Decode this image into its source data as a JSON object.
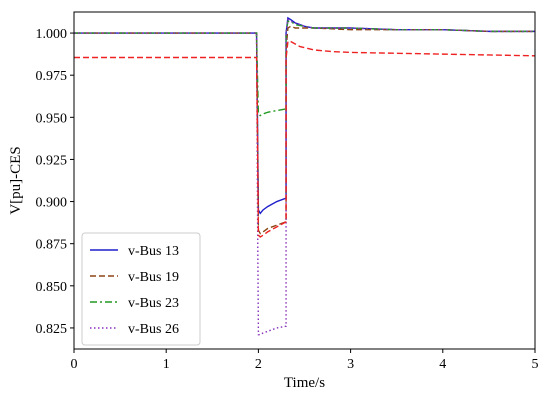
{
  "chart_data": {
    "type": "line",
    "title": "",
    "xlabel": "Time/s",
    "ylabel": "V[pu]-CES",
    "xlim": [
      0,
      5
    ],
    "ylim": [
      0.8125,
      1.0125
    ],
    "x_ticks": [
      0,
      1,
      2,
      3,
      4,
      5
    ],
    "x_tick_labels": [
      "0",
      "1",
      "2",
      "3",
      "4",
      "5"
    ],
    "y_ticks": [
      0.825,
      0.85,
      0.875,
      0.9,
      0.925,
      0.95,
      0.975,
      1.0
    ],
    "y_tick_labels": [
      "0.825",
      "0.850",
      "0.875",
      "0.900",
      "0.925",
      "0.950",
      "0.975",
      "1.000"
    ],
    "grid": false,
    "legend_position": "lower-left",
    "series": [
      {
        "name": "v-Bus 13",
        "color": "#1f1fcc",
        "dash": "solid",
        "x": [
          0,
          1.98,
          1.99,
          2.0,
          2.02,
          2.05,
          2.1,
          2.2,
          2.3,
          2.3,
          2.32,
          2.35,
          2.4,
          2.5,
          2.6,
          3.0,
          3.5,
          4.0,
          4.5,
          5.0
        ],
        "y": [
          1.0,
          1.0,
          0.95,
          0.895,
          0.893,
          0.895,
          0.897,
          0.9,
          0.902,
          1.0,
          1.009,
          1.008,
          1.006,
          1.004,
          1.003,
          1.003,
          1.002,
          1.002,
          1.001,
          1.001
        ]
      },
      {
        "name": "v-Bus 19",
        "color": "#8b4513",
        "dash": "dashed",
        "x": [
          0,
          1.98,
          1.99,
          2.0,
          2.02,
          2.05,
          2.1,
          2.2,
          2.3,
          2.3,
          2.32,
          2.35,
          2.4,
          2.5,
          2.6,
          3.0,
          3.5,
          4.0,
          4.5,
          5.0
        ],
        "y": [
          1.0,
          1.0,
          0.94,
          0.883,
          0.881,
          0.882,
          0.884,
          0.886,
          0.888,
          0.99,
          1.003,
          1.004,
          1.003,
          1.003,
          1.003,
          1.002,
          1.002,
          1.002,
          1.001,
          1.001
        ]
      },
      {
        "name": "v-Bus 23",
        "color": "#229922",
        "dash": "dashdot",
        "x": [
          0,
          1.98,
          1.99,
          2.0,
          2.02,
          2.05,
          2.1,
          2.2,
          2.3,
          2.3,
          2.32,
          2.35,
          2.4,
          2.5,
          2.6,
          3.0,
          3.5,
          4.0,
          4.5,
          5.0
        ],
        "y": [
          1.0,
          1.0,
          0.975,
          0.952,
          0.951,
          0.952,
          0.953,
          0.954,
          0.955,
          1.0,
          1.007,
          1.007,
          1.005,
          1.004,
          1.003,
          1.003,
          1.002,
          1.002,
          1.001,
          1.001
        ]
      },
      {
        "name": "v-Bus 26",
        "color": "#8833bb",
        "dash": "dotted",
        "x": [
          0,
          1.98,
          1.99,
          2.0,
          2.02,
          2.05,
          2.1,
          2.2,
          2.3,
          2.3,
          2.32,
          2.35,
          2.4,
          2.5,
          2.6,
          3.0,
          3.5,
          4.0,
          4.5,
          5.0
        ],
        "y": [
          1.0,
          1.0,
          0.9,
          0.821,
          0.821,
          0.822,
          0.823,
          0.825,
          0.826,
          1.0,
          1.008,
          1.007,
          1.006,
          1.004,
          1.003,
          1.003,
          1.002,
          1.002,
          1.001,
          1.001
        ]
      },
      {
        "name": "",
        "color": "#ee2222",
        "dash": "dashed",
        "x": [
          0,
          1.98,
          1.99,
          2.0,
          2.02,
          2.05,
          2.1,
          2.2,
          2.3,
          2.3,
          2.32,
          2.35,
          2.45,
          2.6,
          2.8,
          3.0,
          3.5,
          4.0,
          4.5,
          5.0
        ],
        "y": [
          0.9855,
          0.9855,
          0.94,
          0.88,
          0.879,
          0.88,
          0.882,
          0.885,
          0.888,
          0.985,
          0.995,
          0.995,
          0.992,
          0.99,
          0.989,
          0.9885,
          0.988,
          0.9875,
          0.987,
          0.9865
        ]
      }
    ]
  }
}
